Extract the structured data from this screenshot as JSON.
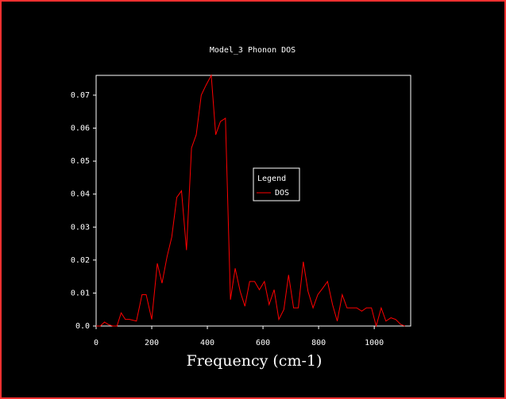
{
  "chart_data": {
    "type": "line",
    "title": "Model_3 Phonon DOS",
    "x_label": "Frequency (cm-1)",
    "x": [
      0,
      15,
      30,
      45,
      60,
      75,
      90,
      105,
      120,
      145,
      165,
      180,
      200,
      220,
      237,
      255,
      272,
      290,
      307,
      325,
      343,
      360,
      378,
      395,
      414,
      430,
      447,
      465,
      483,
      500,
      518,
      535,
      552,
      570,
      587,
      605,
      622,
      640,
      657,
      675,
      692,
      710,
      727,
      745,
      762,
      780,
      797,
      815,
      832,
      850,
      867,
      885,
      902,
      920,
      937,
      955,
      972,
      990,
      1007,
      1025,
      1042,
      1060,
      1077,
      1095,
      1110
    ],
    "series": [
      {
        "name": "DOS",
        "color": "#ff0000",
        "values": [
          0,
          0,
          0.0012,
          0.0004,
          0,
          0,
          0.004,
          0.002,
          0.002,
          0.0015,
          0.0095,
          0.0095,
          0.002,
          0.019,
          0.013,
          0.021,
          0.027,
          0.039,
          0.041,
          0.023,
          0.054,
          0.058,
          0.07,
          0.073,
          0.076,
          0.058,
          0.062,
          0.063,
          0.008,
          0.0175,
          0.0105,
          0.006,
          0.0135,
          0.0135,
          0.011,
          0.0135,
          0.0065,
          0.011,
          0.002,
          0.005,
          0.0155,
          0.0055,
          0.0055,
          0.0195,
          0.0105,
          0.0055,
          0.0095,
          0.0115,
          0.0135,
          0.0065,
          0.0015,
          0.0095,
          0.0055,
          0.0055,
          0.0055,
          0.0045,
          0.0055,
          0.0055,
          0,
          0.0055,
          0.0015,
          0.0025,
          0.002,
          0.0005,
          0
        ]
      }
    ],
    "xlim": [
      0,
      1131
    ],
    "xticks": [
      0,
      200,
      400,
      600,
      800,
      1000
    ],
    "ylim": [
      0,
      0.076
    ],
    "yticks": [
      {
        "value": 0,
        "label": "0.0"
      },
      0.01,
      0.02,
      0.03,
      0.04,
      0.05,
      0.06,
      0.07
    ],
    "legend_title": "Legend",
    "axis_color": "#ffffff"
  }
}
